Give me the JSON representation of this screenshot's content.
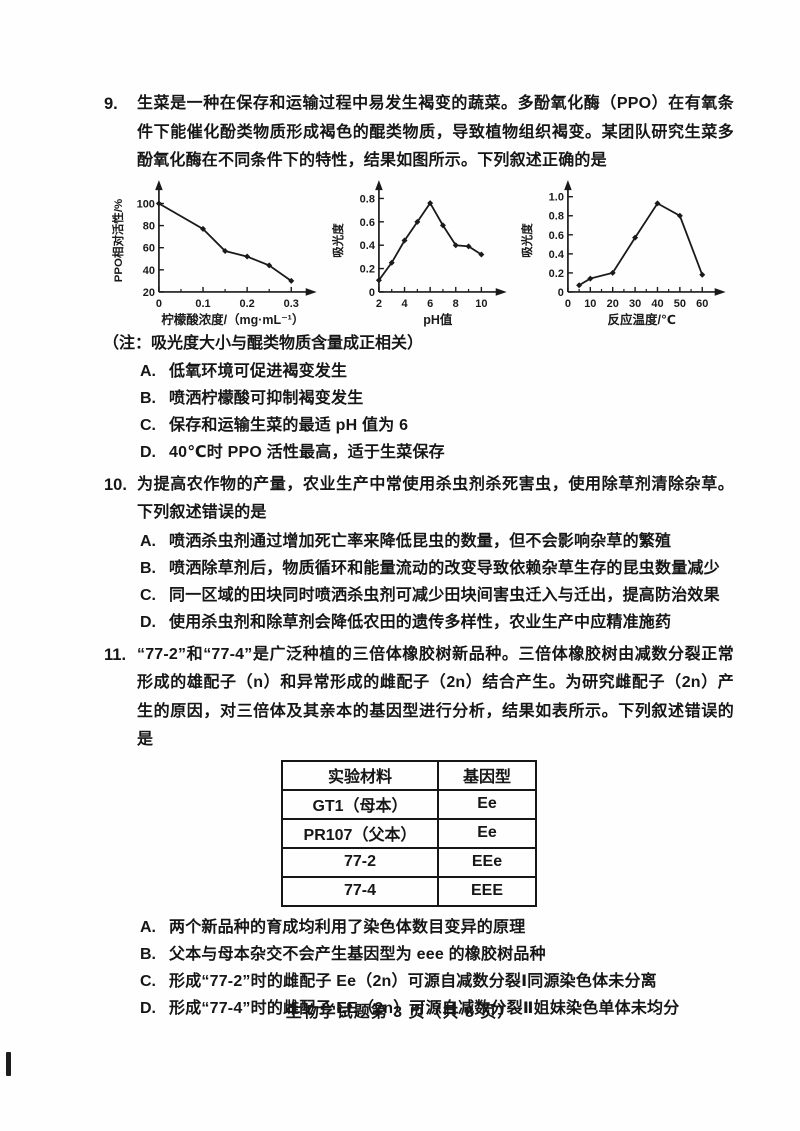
{
  "page": {
    "footer": "生物学试题第 3 页（共 8 页）"
  },
  "questions": [
    {
      "number": "9.",
      "text": "生菜是一种在保存和运输过程中易发生褐变的蔬菜。多酚氧化酶（PPO）在有氧条件下能催化酚类物质形成褐色的醌类物质，导致植物组织褐变。某团队研究生菜多酚氧化酶在不同条件下的特性，结果如图所示。下列叙述正确的是",
      "note": "（注：吸光度大小与醌类物质含量成正相关）",
      "options": [
        {
          "label": "A.",
          "text": "低氧环境可促进褐变发生"
        },
        {
          "label": "B.",
          "text": "喷洒柠檬酸可抑制褐变发生"
        },
        {
          "label": "C.",
          "text": "保存和运输生菜的最适 pH 值为 6"
        },
        {
          "label": "D.",
          "text": "40℃时 PPO 活性最高，适于生菜保存"
        }
      ]
    },
    {
      "number": "10.",
      "text": "为提高农作物的产量，农业生产中常使用杀虫剂杀死害虫，使用除草剂清除杂草。下列叙述错误的是",
      "options": [
        {
          "label": "A.",
          "text": "喷洒杀虫剂通过增加死亡率来降低昆虫的数量，但不会影响杂草的繁殖"
        },
        {
          "label": "B.",
          "text": "喷洒除草剂后，物质循环和能量流动的改变导致依赖杂草生存的昆虫数量减少"
        },
        {
          "label": "C.",
          "text": "同一区域的田块同时喷洒杀虫剂可减少田块间害虫迁入与迁出，提高防治效果"
        },
        {
          "label": "D.",
          "text": "使用杀虫剂和除草剂会降低农田的遗传多样性，农业生产中应精准施药"
        }
      ]
    },
    {
      "number": "11.",
      "text": "“77-2”和“77-4”是广泛种植的三倍体橡胶树新品种。三倍体橡胶树由减数分裂正常形成的雄配子（n）和异常形成的雌配子（2n）结合产生。为研究雌配子（2n）产生的原因，对三倍体及其亲本的基因型进行分析，结果如表所示。下列叙述错误的是",
      "table": {
        "headers": [
          "实验材料",
          "基因型"
        ],
        "rows": [
          [
            "GT1（母本）",
            "Ee"
          ],
          [
            "PR107（父本）",
            "Ee"
          ],
          [
            "77-2",
            "EEe"
          ],
          [
            "77-4",
            "EEE"
          ]
        ]
      },
      "options": [
        {
          "label": "A.",
          "text": "两个新品种的育成均利用了染色体数目变异的原理"
        },
        {
          "label": "B.",
          "text": "父本与母本杂交不会产生基因型为 eee 的橡胶树品种"
        },
        {
          "label": "C.",
          "text": "形成“77-2”时的雌配子 Ee（2n）可源自减数分裂Ⅰ同源染色体未分离"
        },
        {
          "label": "D.",
          "text": "形成“77-4”时的雌配子 EE（2n）可源自减数分裂Ⅱ姐妹染色单体未均分"
        }
      ]
    }
  ],
  "chart_data": [
    {
      "type": "line",
      "title": "",
      "xlabel": "柠檬酸浓度/（mg·mL⁻¹）",
      "ylabel": "PPO相对活性/%",
      "x": [
        0,
        0.1,
        0.15,
        0.2,
        0.25,
        0.3
      ],
      "y": [
        100,
        77,
        57,
        52,
        44,
        30
      ],
      "xlim": [
        0,
        0.335
      ],
      "ylim": [
        20,
        113
      ],
      "xticks": [
        0,
        0.1,
        0.2,
        0.3
      ],
      "xtick_labels": [
        "0",
        "0.1",
        "0.2",
        "0.3"
      ],
      "xminor": [
        0.05,
        0.15,
        0.25
      ],
      "yticks": [
        20,
        40,
        60,
        80,
        100
      ],
      "ytick_labels": [
        "20",
        "40",
        "60",
        "80",
        "100"
      ],
      "grid": false,
      "legend": false,
      "line_color": "#1a1a1a"
    },
    {
      "type": "line",
      "title": "",
      "xlabel": "pH值",
      "ylabel": "吸光度",
      "x": [
        2,
        3,
        4,
        5,
        6,
        7,
        8,
        9,
        10
      ],
      "y": [
        0.1,
        0.25,
        0.44,
        0.6,
        0.76,
        0.57,
        0.4,
        0.39,
        0.32
      ],
      "xlim": [
        2,
        11.2
      ],
      "ylim": [
        0,
        0.88
      ],
      "xticks": [
        2,
        4,
        6,
        8,
        10
      ],
      "xtick_labels": [
        "2",
        "4",
        "6",
        "8",
        "10"
      ],
      "xminor": [
        3,
        5,
        7,
        9
      ],
      "yticks": [
        0,
        0.2,
        0.4,
        0.6,
        0.8
      ],
      "ytick_labels": [
        "0",
        "0.2",
        "0.4",
        "0.6",
        "0.8"
      ],
      "grid": false,
      "legend": false,
      "line_color": "#1a1a1a"
    },
    {
      "type": "line",
      "title": "",
      "xlabel": "反应温度/℃",
      "ylabel": "吸光度",
      "x": [
        5,
        10,
        20,
        30,
        40,
        50,
        60
      ],
      "y": [
        0.07,
        0.14,
        0.2,
        0.57,
        0.93,
        0.8,
        0.18
      ],
      "xlim": [
        0,
        66
      ],
      "ylim": [
        0,
        1.08
      ],
      "xticks": [
        0,
        10,
        20,
        30,
        40,
        50,
        60
      ],
      "xtick_labels": [
        "0",
        "10",
        "20",
        "30",
        "40",
        "50",
        "60"
      ],
      "xminor": [
        5,
        15,
        25,
        35,
        45,
        55
      ],
      "yticks": [
        0,
        0.2,
        0.4,
        0.6,
        0.8,
        1.0
      ],
      "ytick_labels": [
        "0",
        "0.2",
        "0.4",
        "0.6",
        "0.8",
        "1.0"
      ],
      "grid": false,
      "legend": false,
      "line_color": "#1a1a1a"
    }
  ]
}
